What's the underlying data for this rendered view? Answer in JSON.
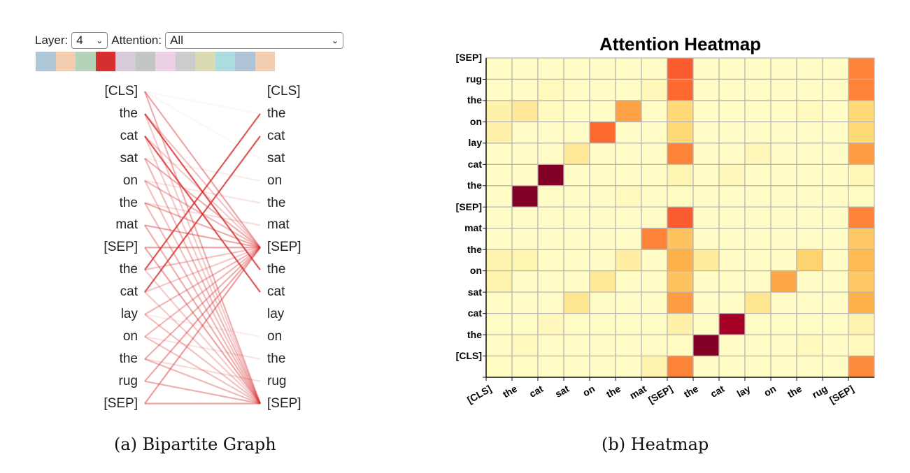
{
  "panel_a": {
    "layer_label": "Layer:",
    "layer_value": "4",
    "attention_label": "Attention:",
    "attention_value": "All",
    "head_colors": [
      "#aec7d6",
      "#f3cdb0",
      "#b5d3b9",
      "#d62f2f",
      "#d5cbd9",
      "#c2c7c6",
      "#ecd0e4",
      "#cccccc",
      "#dadbb3",
      "#addce0",
      "#aec4d6",
      "#f3cdb0"
    ],
    "edge_color": "#d62f2f",
    "left_tokens": [
      "[CLS]",
      "the",
      "cat",
      "sat",
      "on",
      "the",
      "mat",
      "[SEP]",
      "the",
      "cat",
      "lay",
      "on",
      "the",
      "rug",
      "[SEP]"
    ],
    "right_tokens": [
      "[CLS]",
      "the",
      "cat",
      "sat",
      "on",
      "the",
      "mat",
      "[SEP]",
      "the",
      "cat",
      "lay",
      "on",
      "the",
      "rug",
      "[SEP]"
    ],
    "edges": [
      [
        0,
        7,
        0.5
      ],
      [
        0,
        14,
        0.45
      ],
      [
        0,
        1,
        0.05
      ],
      [
        0,
        3,
        0.05
      ],
      [
        1,
        8,
        0.95
      ],
      [
        1,
        7,
        0.35
      ],
      [
        1,
        14,
        0.3
      ],
      [
        2,
        9,
        0.95
      ],
      [
        2,
        7,
        0.3
      ],
      [
        2,
        14,
        0.3
      ],
      [
        3,
        7,
        0.45
      ],
      [
        3,
        14,
        0.4
      ],
      [
        3,
        4,
        0.1
      ],
      [
        4,
        7,
        0.4
      ],
      [
        4,
        14,
        0.35
      ],
      [
        4,
        5,
        0.15
      ],
      [
        5,
        7,
        0.45
      ],
      [
        5,
        14,
        0.4
      ],
      [
        5,
        6,
        0.2
      ],
      [
        6,
        7,
        0.5
      ],
      [
        6,
        14,
        0.45
      ],
      [
        7,
        7,
        0.55
      ],
      [
        7,
        14,
        0.5
      ],
      [
        8,
        1,
        0.95
      ],
      [
        8,
        7,
        0.35
      ],
      [
        8,
        14,
        0.3
      ],
      [
        9,
        2,
        0.95
      ],
      [
        9,
        7,
        0.3
      ],
      [
        9,
        14,
        0.3
      ],
      [
        10,
        7,
        0.4
      ],
      [
        10,
        14,
        0.35
      ],
      [
        10,
        11,
        0.1
      ],
      [
        11,
        7,
        0.4
      ],
      [
        11,
        14,
        0.35
      ],
      [
        11,
        12,
        0.15
      ],
      [
        12,
        7,
        0.45
      ],
      [
        12,
        14,
        0.4
      ],
      [
        12,
        13,
        0.2
      ],
      [
        13,
        7,
        0.5
      ],
      [
        13,
        14,
        0.45
      ],
      [
        14,
        7,
        0.55
      ],
      [
        14,
        14,
        0.5
      ]
    ],
    "caption": "(a) Bipartite Graph"
  },
  "chart_data": {
    "type": "heatmap",
    "title": "Attention Heatmap",
    "colormap": "YlOrRd",
    "x_tick_labels": [
      "[CLS]",
      "the",
      "cat",
      "sat",
      "on",
      "the",
      "mat",
      "[SEP]",
      "the",
      "cat",
      "lay",
      "on",
      "the",
      "rug",
      "[SEP]"
    ],
    "y_tick_labels_top_to_bottom": [
      "[SEP]",
      "rug",
      "the",
      "on",
      "lay",
      "cat",
      "the",
      "[SEP]",
      "mat",
      "the",
      "on",
      "sat",
      "cat",
      "the",
      "[CLS]"
    ],
    "values_top_to_bottom": [
      [
        0.02,
        0.02,
        0.02,
        0.02,
        0.02,
        0.02,
        0.02,
        0.6,
        0.02,
        0.02,
        0.02,
        0.02,
        0.02,
        0.02,
        0.52
      ],
      [
        0.02,
        0.02,
        0.04,
        0.02,
        0.02,
        0.02,
        0.05,
        0.57,
        0.02,
        0.02,
        0.02,
        0.02,
        0.02,
        0.02,
        0.52
      ],
      [
        0.1,
        0.15,
        0.04,
        0.02,
        0.02,
        0.43,
        0.02,
        0.25,
        0.02,
        0.02,
        0.02,
        0.02,
        0.04,
        0.02,
        0.25
      ],
      [
        0.1,
        0.02,
        0.02,
        0.02,
        0.57,
        0.02,
        0.02,
        0.25,
        0.02,
        0.02,
        0.02,
        0.02,
        0.02,
        0.02,
        0.25
      ],
      [
        0.02,
        0.02,
        0.02,
        0.15,
        0.02,
        0.02,
        0.02,
        0.52,
        0.02,
        0.02,
        0.06,
        0.02,
        0.02,
        0.02,
        0.45
      ],
      [
        0.02,
        0.02,
        1.0,
        0.02,
        0.02,
        0.02,
        0.02,
        0.07,
        0.02,
        0.05,
        0.02,
        0.02,
        0.02,
        0.02,
        0.06
      ],
      [
        0.02,
        1.0,
        0.02,
        0.02,
        0.02,
        0.04,
        0.02,
        0.03,
        0.02,
        0.02,
        0.02,
        0.02,
        0.02,
        0.02,
        0.03
      ],
      [
        0.02,
        0.02,
        0.02,
        0.02,
        0.02,
        0.02,
        0.02,
        0.6,
        0.02,
        0.02,
        0.02,
        0.02,
        0.02,
        0.02,
        0.52
      ],
      [
        0.02,
        0.02,
        0.02,
        0.02,
        0.02,
        0.02,
        0.52,
        0.32,
        0.02,
        0.02,
        0.02,
        0.02,
        0.02,
        0.02,
        0.3
      ],
      [
        0.08,
        0.07,
        0.02,
        0.02,
        0.02,
        0.12,
        0.02,
        0.38,
        0.13,
        0.02,
        0.02,
        0.02,
        0.27,
        0.02,
        0.35
      ],
      [
        0.09,
        0.02,
        0.02,
        0.02,
        0.15,
        0.02,
        0.02,
        0.32,
        0.02,
        0.02,
        0.02,
        0.42,
        0.02,
        0.02,
        0.3
      ],
      [
        0.02,
        0.02,
        0.02,
        0.17,
        0.02,
        0.02,
        0.02,
        0.45,
        0.02,
        0.02,
        0.17,
        0.02,
        0.02,
        0.02,
        0.38
      ],
      [
        0.02,
        0.02,
        0.05,
        0.02,
        0.02,
        0.02,
        0.02,
        0.1,
        0.02,
        0.92,
        0.02,
        0.02,
        0.02,
        0.02,
        0.08
      ],
      [
        0.02,
        0.04,
        0.02,
        0.02,
        0.02,
        0.02,
        0.02,
        0.03,
        1.0,
        0.02,
        0.02,
        0.02,
        0.04,
        0.02,
        0.04
      ],
      [
        0.03,
        0.03,
        0.02,
        0.02,
        0.02,
        0.02,
        0.08,
        0.52,
        0.02,
        0.02,
        0.02,
        0.02,
        0.02,
        0.02,
        0.5
      ]
    ],
    "grid": true,
    "caption": "(b) Heatmap"
  }
}
